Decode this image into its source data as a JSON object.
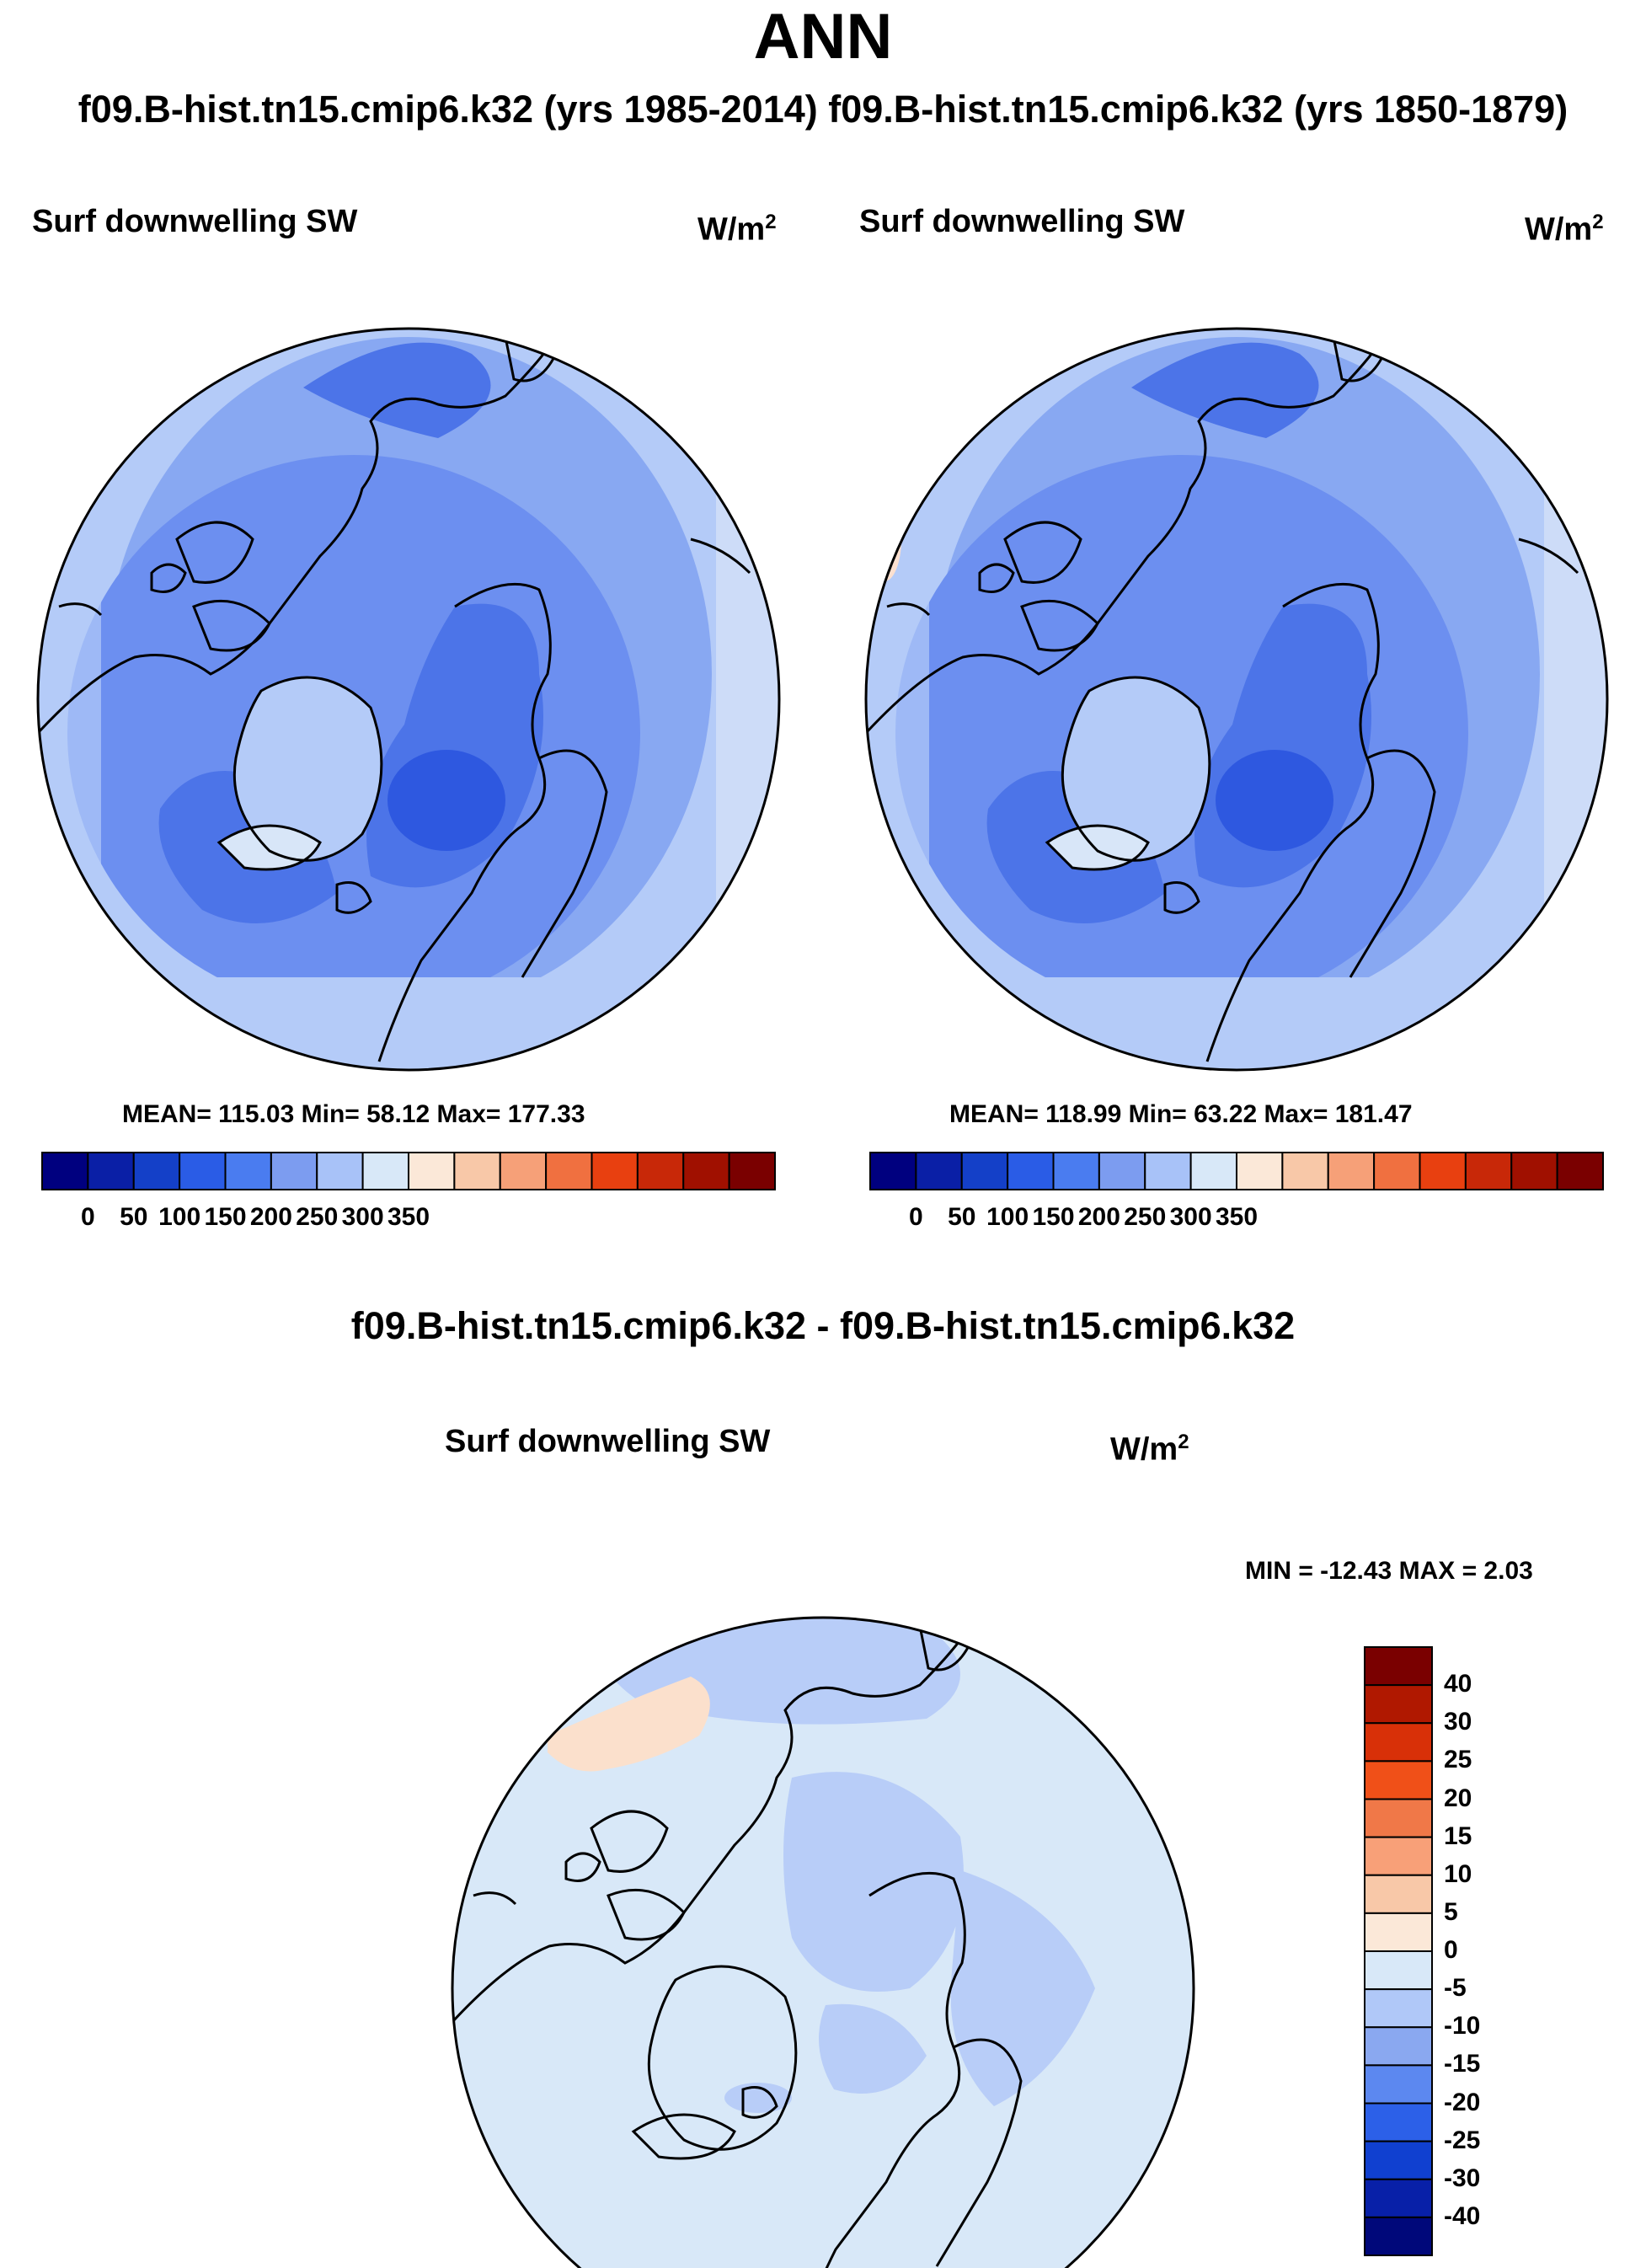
{
  "title": "ANN",
  "subtitle": "f09.B-hist.tn15.cmip6.k32 (yrs 1985-2014)  f09.B-hist.tn15.cmip6.k32 (yrs 1850-1879)",
  "diff_title": "f09.B-hist.tn15.cmip6.k32 - f09.B-hist.tn15.cmip6.k32",
  "panels": [
    {
      "variable": "Surf downwelling SW",
      "units": "W/m",
      "units_exp": "2",
      "stats": "MEAN= 115.03  Min=  58.12  Max= 177.33"
    },
    {
      "variable": "Surf downwelling SW",
      "units": "W/m",
      "units_exp": "2",
      "stats": "MEAN= 118.99  Min=  63.22  Max= 181.47"
    },
    {
      "variable": "Surf downwelling SW",
      "units": "W/m",
      "units_exp": "2",
      "stats": "MIN = -12.43 MAX =   2.03"
    }
  ],
  "chart_data": [
    {
      "type": "heatmap",
      "projection": "north-polar-stereographic",
      "title": "Surf downwelling SW (yrs 1985-2014)",
      "units": "W/m2",
      "mean": 115.03,
      "min": 58.12,
      "max": 177.33,
      "colorbar": {
        "orientation": "horizontal",
        "levels": [
          0,
          50,
          100,
          150,
          200,
          250,
          300,
          350
        ],
        "tick_labels": [
          "0",
          "50",
          "100",
          "150",
          "200",
          "250",
          "300",
          "350"
        ],
        "colors": [
          "#00007f",
          "#0a1fa6",
          "#1440c8",
          "#2a5ce6",
          "#4a7cf0",
          "#7c9cf0",
          "#a8c2f8",
          "#d8e8f8",
          "#fbe8d8",
          "#f8c8a8",
          "#f6a078",
          "#f07040",
          "#e84010",
          "#c82808",
          "#a01000",
          "#7a0000"
        ]
      }
    },
    {
      "type": "heatmap",
      "projection": "north-polar-stereographic",
      "title": "Surf downwelling SW (yrs 1850-1879)",
      "units": "W/m2",
      "mean": 118.99,
      "min": 63.22,
      "max": 181.47,
      "colorbar": {
        "orientation": "horizontal",
        "levels": [
          0,
          50,
          100,
          150,
          200,
          250,
          300,
          350
        ],
        "tick_labels": [
          "0",
          "50",
          "100",
          "150",
          "200",
          "250",
          "300",
          "350"
        ],
        "colors": [
          "#00007f",
          "#0a1fa6",
          "#1440c8",
          "#2a5ce6",
          "#4a7cf0",
          "#7c9cf0",
          "#a8c2f8",
          "#d8e8f8",
          "#fbe8d8",
          "#f8c8a8",
          "#f6a078",
          "#f07040",
          "#e84010",
          "#c82808",
          "#a01000",
          "#7a0000"
        ]
      }
    },
    {
      "type": "heatmap",
      "projection": "north-polar-stereographic",
      "title": "Surf downwelling SW difference",
      "units": "W/m2",
      "min": -12.43,
      "max": 2.03,
      "colorbar": {
        "orientation": "vertical",
        "tick_labels": [
          "40",
          "30",
          "25",
          "20",
          "15",
          "10",
          "5",
          "0",
          "-5",
          "-10",
          "-15",
          "-20",
          "-25",
          "-30",
          "-40"
        ],
        "colors": [
          "#7a0000",
          "#b01800",
          "#d83008",
          "#f05018",
          "#f07848",
          "#f8a078",
          "#f8c8a8",
          "#fbe8d8",
          "#d8e8f8",
          "#b0c8f8",
          "#8aa8f0",
          "#5c88f0",
          "#2c60e8",
          "#1040d0",
          "#0820a8",
          "#00087a"
        ]
      }
    }
  ]
}
